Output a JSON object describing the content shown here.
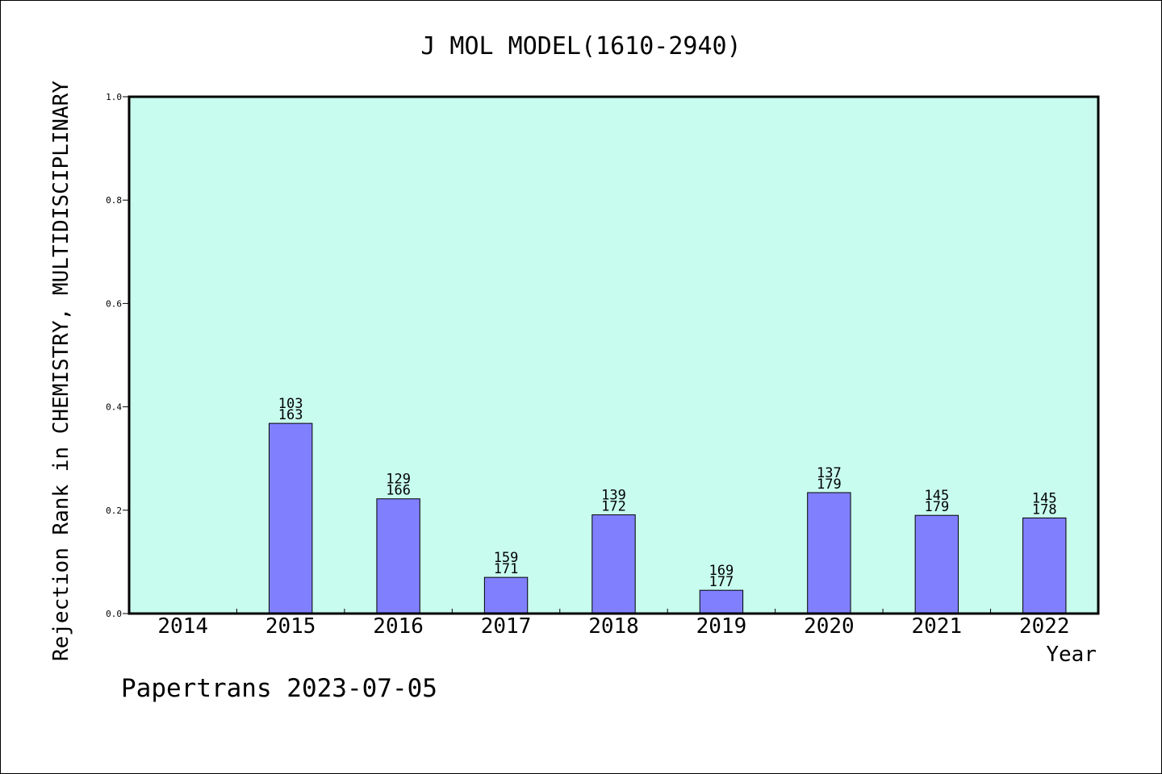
{
  "chart_data": {
    "type": "bar",
    "title": "J MOL MODEL(1610-2940)",
    "xlabel": "Year",
    "ylabel": "Rejection Rank in CHEMISTRY, MULTIDISCIPLINARY",
    "categories": [
      "2014",
      "2015",
      "2016",
      "2017",
      "2018",
      "2019",
      "2020",
      "2021",
      "2022"
    ],
    "values": [
      null,
      0.368,
      0.222,
      0.07,
      0.191,
      0.045,
      0.234,
      0.19,
      0.185
    ],
    "bar_labels": [
      null,
      [
        "103",
        "163"
      ],
      [
        "129",
        "166"
      ],
      [
        "159",
        "171"
      ],
      [
        "139",
        "172"
      ],
      [
        "169",
        "177"
      ],
      [
        "137",
        "179"
      ],
      [
        "145",
        "179"
      ],
      [
        "145",
        "178"
      ]
    ],
    "ylim": [
      0,
      1.0
    ],
    "yticks": [
      "0.0",
      "0.2",
      "0.4",
      "0.6",
      "0.8",
      "1.0"
    ],
    "grid": false,
    "legend": "none",
    "colors": {
      "plot_background": "#c8fcee",
      "bar_fill": "#8080ff",
      "bar_stroke": "#000000"
    }
  },
  "footer": "Papertrans 2023-07-05"
}
